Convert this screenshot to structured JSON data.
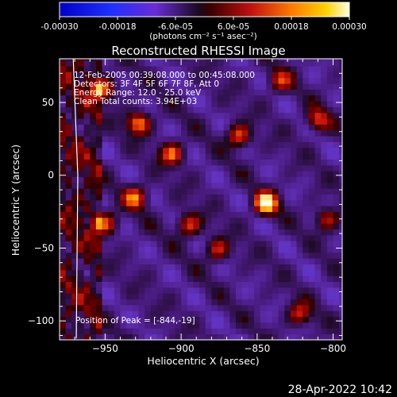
{
  "colorbar": {
    "ticks": [
      "-0.00030",
      "-0.00018",
      "-6.0e-05",
      "6.0e-05",
      "0.00018",
      "0.00030"
    ],
    "unit_label": "(photons cm⁻² s⁻¹ asec⁻²)",
    "range": [
      -0.0003,
      0.0003
    ]
  },
  "chart_data": {
    "type": "heatmap",
    "title": "Reconstructed RHESSI Image",
    "xlabel": "Heliocentric X (arcsec)",
    "ylabel": "Heliocentric Y (arcsec)",
    "xlim": [
      -980,
      -794
    ],
    "ylim": [
      -113,
      80
    ],
    "xticks": [
      -950,
      -900,
      -850,
      -800
    ],
    "yticks": [
      50,
      0,
      -50,
      -100
    ],
    "xtick_labels": [
      "−950",
      "−900",
      "−850",
      "−800"
    ],
    "ytick_labels": [
      "50",
      "0",
      "−50",
      "−100"
    ],
    "peak": {
      "x": -844,
      "y": -19
    },
    "bright_sources": [
      {
        "x": -844,
        "y": -19,
        "value": 0.0003
      },
      {
        "x": -928,
        "y": 36,
        "value": 0.0002
      },
      {
        "x": -862,
        "y": 27,
        "value": 0.00017
      },
      {
        "x": -906,
        "y": 15,
        "value": 0.00017
      },
      {
        "x": -930,
        "y": -15,
        "value": 0.00018
      },
      {
        "x": -951,
        "y": 59,
        "value": 0.00018
      },
      {
        "x": -895,
        "y": -34,
        "value": 0.00015
      },
      {
        "x": -950,
        "y": -33,
        "value": 0.00016
      },
      {
        "x": -876,
        "y": -51,
        "value": 0.00012
      },
      {
        "x": -810,
        "y": 38,
        "value": 0.00014
      },
      {
        "x": -804,
        "y": -30,
        "value": 0.00011
      },
      {
        "x": -822,
        "y": -95,
        "value": 0.00012
      },
      {
        "x": -835,
        "y": 65,
        "value": 0.00011
      }
    ],
    "limb_x_at_y": [
      [
        80,
        -971
      ],
      [
        0,
        -968
      ],
      [
        -113,
        -969
      ]
    ],
    "annotations": [
      "12-Feb-2005 00:39:08.000 to 00:45:08.000",
      "Detectors: 3F 4F 5F 6F 7F 8F, Att 0",
      "Energy Range: 12.0 - 25.0 keV",
      "Clean    Total counts: 3.94E+03"
    ],
    "peak_label": "Position of Peak = [-844,-19]"
  },
  "footer": {
    "timestamp": "28-Apr-2022 10:42"
  }
}
